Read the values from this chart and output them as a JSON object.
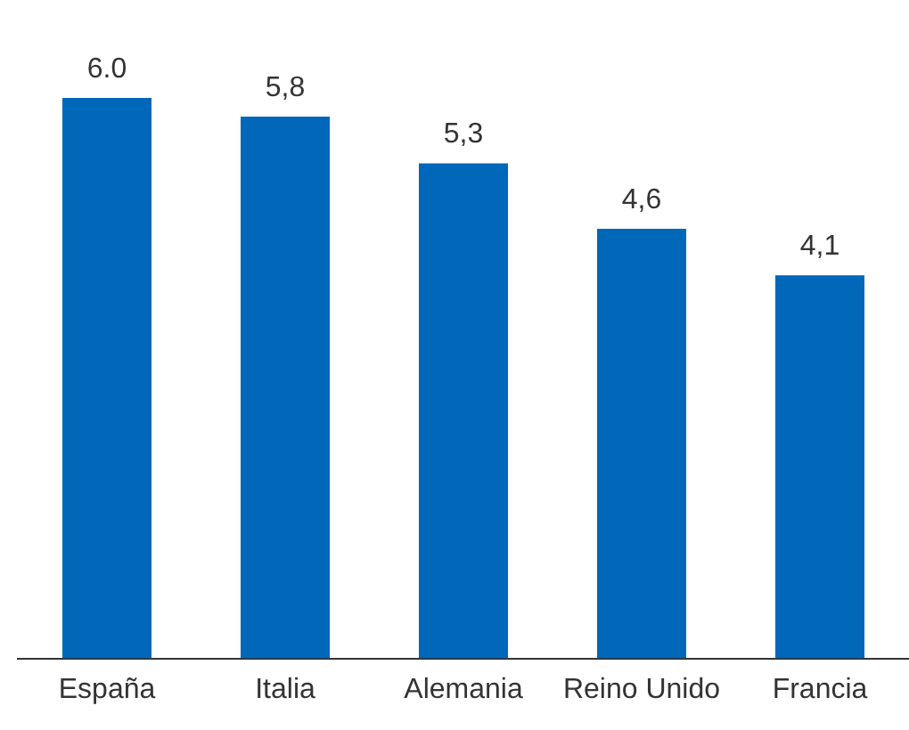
{
  "chart_data": {
    "type": "bar",
    "categories": [
      "España",
      "Italia",
      "Alemania",
      "Reino Unido",
      "Francia"
    ],
    "values": [
      6.0,
      5.8,
      5.3,
      4.6,
      4.1
    ],
    "value_labels": [
      "6.0",
      "5,8",
      "5,3",
      "4,6",
      "4,1"
    ],
    "color": "#0067b9",
    "tick_labels": "x"
  }
}
